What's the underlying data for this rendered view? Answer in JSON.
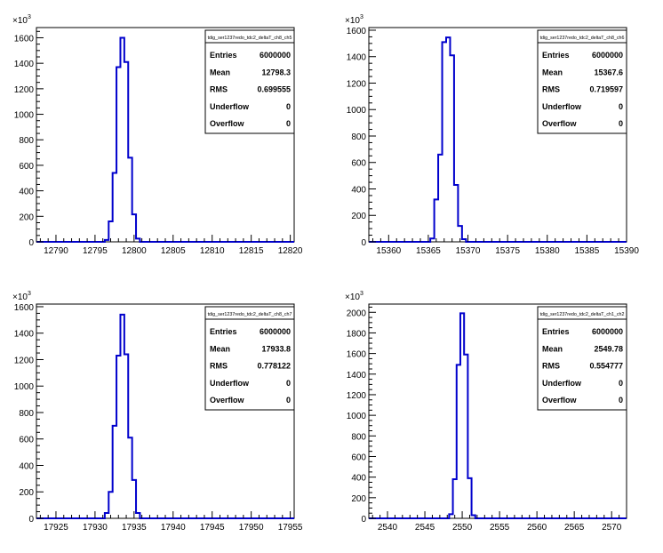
{
  "chart_data": [
    {
      "type": "histogram",
      "title": "tdig_ser1237redo_tdc2_deltaT_ch8_ch5",
      "y_multiplier": "10",
      "y_exponent": "3",
      "xlim": [
        12787.5,
        12820.5
      ],
      "ylim": [
        0,
        1680
      ],
      "x_ticks": [
        12790,
        12795,
        12800,
        12805,
        12810,
        12815,
        12820
      ],
      "y_ticks": [
        0,
        200,
        400,
        600,
        800,
        1000,
        1200,
        1400,
        1600
      ],
      "bin_width": 0.5,
      "bins": [
        {
          "x": 12796.5,
          "y": 15
        },
        {
          "x": 12797.0,
          "y": 160
        },
        {
          "x": 12797.5,
          "y": 540
        },
        {
          "x": 12798.0,
          "y": 1370
        },
        {
          "x": 12798.5,
          "y": 1600
        },
        {
          "x": 12799.0,
          "y": 1410
        },
        {
          "x": 12799.5,
          "y": 660
        },
        {
          "x": 12800.0,
          "y": 215
        },
        {
          "x": 12800.5,
          "y": 25
        }
      ],
      "stats": [
        {
          "label": "Entries",
          "value": "6000000"
        },
        {
          "label": "Mean",
          "value": "12798.3"
        },
        {
          "label": "RMS",
          "value": "0.699555"
        },
        {
          "label": "Underflow",
          "value": "0"
        },
        {
          "label": "Overflow",
          "value": "0"
        }
      ],
      "line_color": "#0000cc"
    },
    {
      "type": "histogram",
      "title": "tdig_ser1237redo_tdc2_deltaT_ch8_ch6",
      "y_multiplier": "10",
      "y_exponent": "3",
      "xlim": [
        15357.5,
        15390
      ],
      "ylim": [
        0,
        1620
      ],
      "x_ticks": [
        15360,
        15365,
        15370,
        15375,
        15380,
        15385,
        15390
      ],
      "y_ticks": [
        0,
        200,
        400,
        600,
        800,
        1000,
        1200,
        1400,
        1600
      ],
      "bin_width": 0.5,
      "bins": [
        {
          "x": 15365.5,
          "y": 25
        },
        {
          "x": 15366.0,
          "y": 320
        },
        {
          "x": 15366.5,
          "y": 660
        },
        {
          "x": 15367.0,
          "y": 1510
        },
        {
          "x": 15367.5,
          "y": 1545
        },
        {
          "x": 15368.0,
          "y": 1410
        },
        {
          "x": 15368.5,
          "y": 430
        },
        {
          "x": 15369.0,
          "y": 120
        },
        {
          "x": 15369.5,
          "y": 20
        }
      ],
      "stats": [
        {
          "label": "Entries",
          "value": "6000000"
        },
        {
          "label": "Mean",
          "value": "15367.6"
        },
        {
          "label": "RMS",
          "value": "0.719597"
        },
        {
          "label": "Underflow",
          "value": "0"
        },
        {
          "label": "Overflow",
          "value": "0"
        }
      ],
      "line_color": "#0000cc"
    },
    {
      "type": "histogram",
      "title": "tdig_ser1237redo_tdc2_deltaT_ch8_ch7",
      "y_multiplier": "10",
      "y_exponent": "3",
      "xlim": [
        17922.5,
        17955.5
      ],
      "ylim": [
        0,
        1620
      ],
      "x_ticks": [
        17925,
        17930,
        17935,
        17940,
        17945,
        17950,
        17955
      ],
      "y_ticks": [
        0,
        200,
        400,
        600,
        800,
        1000,
        1200,
        1400,
        1600
      ],
      "bin_width": 0.5,
      "bins": [
        {
          "x": 17931.5,
          "y": 40
        },
        {
          "x": 17932.0,
          "y": 200
        },
        {
          "x": 17932.5,
          "y": 700
        },
        {
          "x": 17933.0,
          "y": 1230
        },
        {
          "x": 17933.5,
          "y": 1540
        },
        {
          "x": 17934.0,
          "y": 1240
        },
        {
          "x": 17934.5,
          "y": 610
        },
        {
          "x": 17935.0,
          "y": 290
        },
        {
          "x": 17935.5,
          "y": 40
        }
      ],
      "stats": [
        {
          "label": "Entries",
          "value": "6000000"
        },
        {
          "label": "Mean",
          "value": "17933.8"
        },
        {
          "label": "RMS",
          "value": "0.778122"
        },
        {
          "label": "Underflow",
          "value": "0"
        },
        {
          "label": "Overflow",
          "value": "0"
        }
      ],
      "line_color": "#0000cc"
    },
    {
      "type": "histogram",
      "title": "tdig_ser1237redo_tdc2_deltaT_ch1_ch2",
      "y_multiplier": "10",
      "y_exponent": "3",
      "xlim": [
        2537.5,
        2572
      ],
      "ylim": [
        0,
        2080
      ],
      "x_ticks": [
        2540,
        2545,
        2550,
        2555,
        2560,
        2565,
        2570
      ],
      "y_ticks": [
        0,
        200,
        400,
        600,
        800,
        1000,
        1200,
        1400,
        1600,
        1800,
        2000
      ],
      "bin_width": 0.5,
      "bins": [
        {
          "x": 2548.5,
          "y": 40
        },
        {
          "x": 2549.0,
          "y": 380
        },
        {
          "x": 2549.5,
          "y": 1490
        },
        {
          "x": 2550.0,
          "y": 1990
        },
        {
          "x": 2550.5,
          "y": 1590
        },
        {
          "x": 2551.0,
          "y": 390
        },
        {
          "x": 2551.5,
          "y": 30
        }
      ],
      "stats": [
        {
          "label": "Entries",
          "value": "6000000"
        },
        {
          "label": "Mean",
          "value": "2549.78"
        },
        {
          "label": "RMS",
          "value": "0.554777"
        },
        {
          "label": "Underflow",
          "value": "0"
        },
        {
          "label": "Overflow",
          "value": "0"
        }
      ],
      "line_color": "#0000cc"
    }
  ]
}
